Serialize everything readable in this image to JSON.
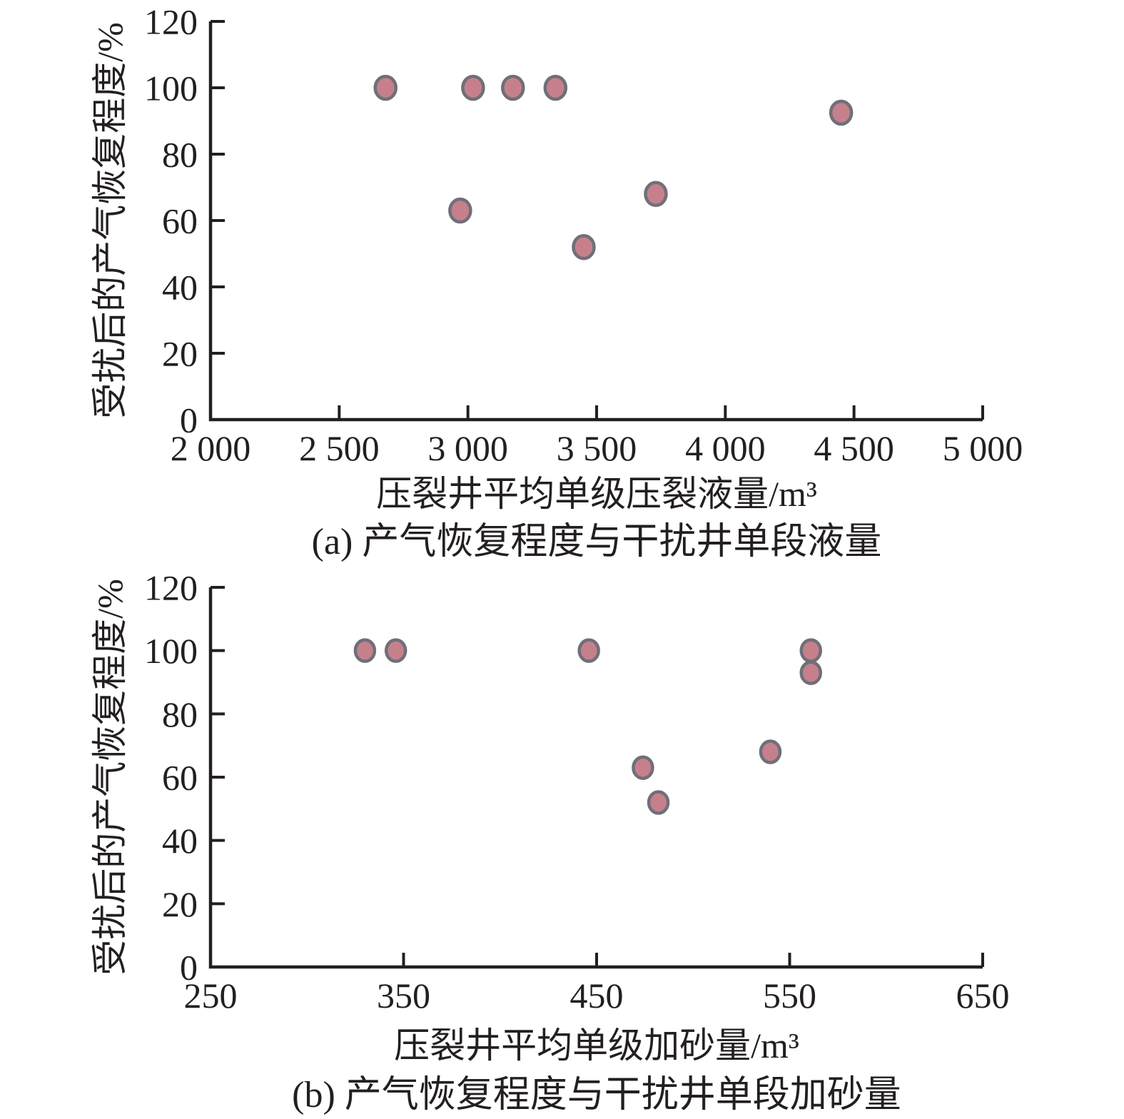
{
  "figure": {
    "background": "#ffffff",
    "axis_color": "#231f20",
    "text_color": "#231f20"
  },
  "chart_data": [
    {
      "id": "a",
      "type": "scatter",
      "caption": "(a) 产气恢复程度与干扰井单段液量",
      "xlabel": "压裂井平均单级压裂液量/m³",
      "ylabel": "受扰后的产气恢复程度/%",
      "xlim": [
        2000,
        5000
      ],
      "ylim": [
        0,
        120
      ],
      "xticks": [
        2000,
        2500,
        3000,
        3500,
        4000,
        4500,
        5000
      ],
      "xtick_labels": [
        "2 000",
        "2 500",
        "3 000",
        "3 500",
        "4 000",
        "4 500",
        "5 000"
      ],
      "yticks": [
        0,
        20,
        40,
        60,
        80,
        100,
        120
      ],
      "ytick_labels": [
        "0",
        "20",
        "40",
        "60",
        "80",
        "100",
        "120"
      ],
      "grid": false,
      "legend": null,
      "marker": {
        "shape": "circle",
        "fill": "#c6808c",
        "stroke": "#6f6f79"
      },
      "points": [
        {
          "x": 2680,
          "y": 100
        },
        {
          "x": 3020,
          "y": 100
        },
        {
          "x": 3175,
          "y": 100
        },
        {
          "x": 3340,
          "y": 100
        },
        {
          "x": 4450,
          "y": 92.5
        },
        {
          "x": 2970,
          "y": 63
        },
        {
          "x": 3450,
          "y": 52
        },
        {
          "x": 3730,
          "y": 68
        }
      ]
    },
    {
      "id": "b",
      "type": "scatter",
      "caption": "(b) 产气恢复程度与干扰井单段加砂量",
      "xlabel": "压裂井平均单级加砂量/m³",
      "ylabel": "受扰后的产气恢复程度/%",
      "xlim": [
        250,
        650
      ],
      "ylim": [
        0,
        120
      ],
      "xticks": [
        250,
        350,
        450,
        550,
        650
      ],
      "xtick_labels": [
        "250",
        "350",
        "450",
        "550",
        "650"
      ],
      "yticks": [
        0,
        20,
        40,
        60,
        80,
        100,
        120
      ],
      "ytick_labels": [
        "0",
        "20",
        "40",
        "60",
        "80",
        "100",
        "120"
      ],
      "grid": false,
      "legend": null,
      "marker": {
        "shape": "circle",
        "fill": "#c6808c",
        "stroke": "#6f6f79"
      },
      "points": [
        {
          "x": 330,
          "y": 100
        },
        {
          "x": 346,
          "y": 100
        },
        {
          "x": 446,
          "y": 100
        },
        {
          "x": 561,
          "y": 100
        },
        {
          "x": 561,
          "y": 93
        },
        {
          "x": 474,
          "y": 63
        },
        {
          "x": 482,
          "y": 52
        },
        {
          "x": 540,
          "y": 68
        }
      ]
    }
  ]
}
